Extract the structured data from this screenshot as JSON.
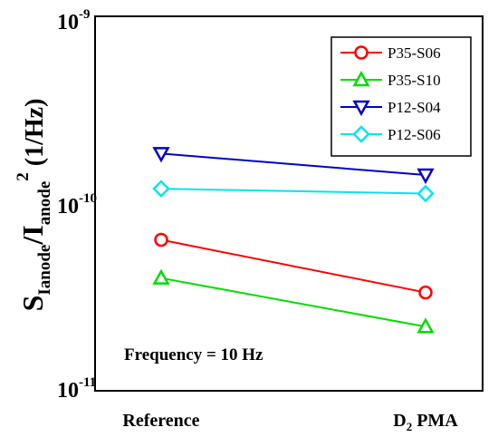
{
  "chart_data": {
    "type": "line",
    "categories": [
      "Reference",
      "D2 PMA"
    ],
    "y_scale": "log",
    "ylim": [
      1e-11,
      1e-09
    ],
    "y_ticks": [
      {
        "mant": "10",
        "exp": "-11"
      },
      {
        "mant": "10",
        "exp": "-10"
      },
      {
        "mant": "10",
        "exp": "-9"
      }
    ],
    "ylabel": {
      "s": "S",
      "s_sub": "Ianode",
      "slash": "/I",
      "i_sub": "anode",
      "sup": "2",
      "unit": " (1/Hz)"
    },
    "annotation": "Frequency = 10 Hz",
    "legend_position": "top-right",
    "series": [
      {
        "name": "P35-S06",
        "color": "#ff0000",
        "marker": "circle",
        "values": [
          6.4e-11,
          3.35e-11
        ]
      },
      {
        "name": "P35-S10",
        "color": "#00dd00",
        "marker": "triangle-up",
        "values": [
          4e-11,
          2.2e-11
        ]
      },
      {
        "name": "P12-S04",
        "color": "#0000cc",
        "marker": "triangle-down",
        "values": [
          1.85e-10,
          1.42e-10
        ]
      },
      {
        "name": "P12-S06",
        "color": "#00e5ee",
        "marker": "diamond",
        "values": [
          1.2e-10,
          1.13e-10
        ]
      }
    ]
  }
}
